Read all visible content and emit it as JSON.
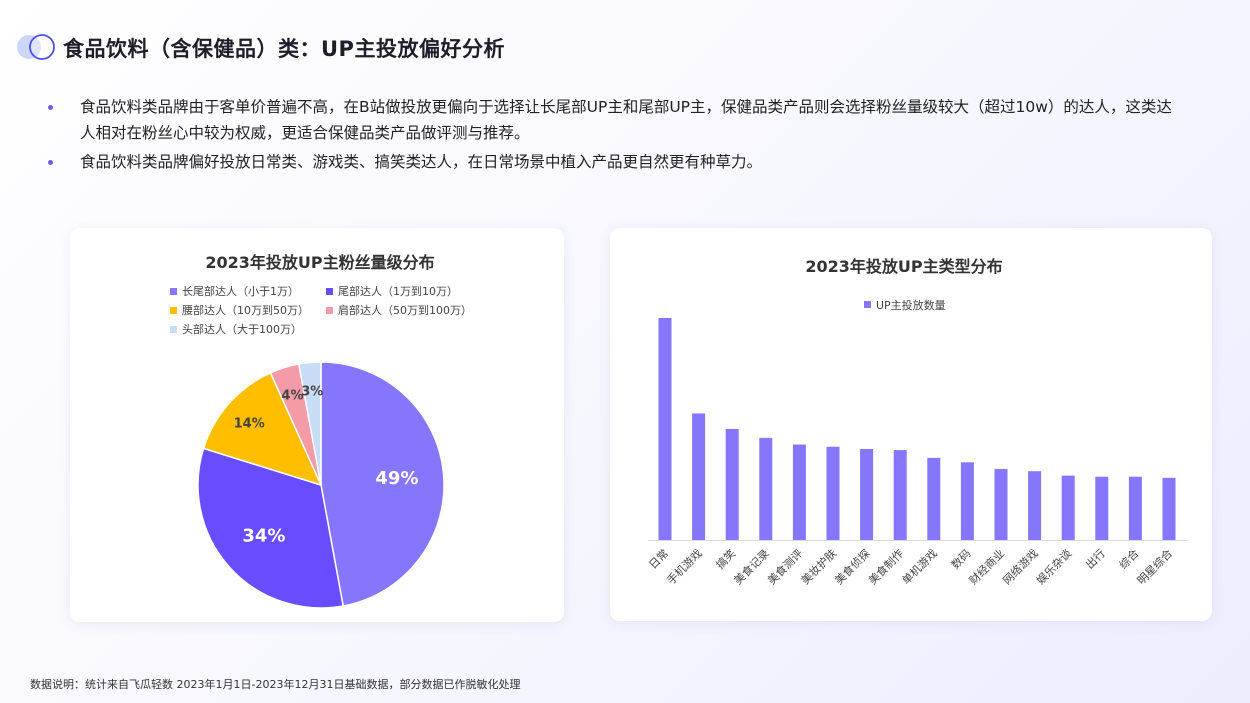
{
  "header": {
    "title": "食品饮料（含保健品）类：UP主投放偏好分析",
    "logo_icon": "double-circle-icon"
  },
  "bullets": [
    "食品饮料类品牌由于客单价普遍不高，在B站做投放更偏向于选择让长尾部UP主和尾部UP主，保健品类产品则会选择粉丝量级较大（超过10w）的达人，这类达人相对在粉丝心中较为权威，更适合保健品类产品做评测与推荐。",
    "食品饮料类品牌偏好投放日常类、游戏类、搞笑类达人，在日常场景中植入产品更自然更有种草力。"
  ],
  "footnote": "数据说明：统计来自飞瓜轻数 2023年1月1日-2023年12月31日基础数据，部分数据已作脱敏化处理",
  "chart_data": [
    {
      "type": "pie",
      "title": "2023年投放UP主粉丝量级分布",
      "legend_position": "top",
      "slices": [
        {
          "name": "长尾部达人（小于1万）",
          "value": 49,
          "label": "49%",
          "color": "#8676fb"
        },
        {
          "name": "尾部达人（1万到10万）",
          "value": 34,
          "label": "34%",
          "color": "#6a4cff"
        },
        {
          "name": "腰部达人（10万到50万）",
          "value": 14,
          "label": "14%",
          "color": "#ffbf00"
        },
        {
          "name": "肩部达人（50万到100万）",
          "value": 4,
          "label": "4%",
          "color": "#f59ba8"
        },
        {
          "name": "头部达人（大于100万）",
          "value": 3,
          "label": "3%",
          "color": "#c7dcf5"
        }
      ]
    },
    {
      "type": "bar",
      "title": "2023年投放UP主类型分布",
      "legend_position": "top",
      "grid": false,
      "series": [
        {
          "name": "UP主投放数量",
          "color": "#8676fb",
          "values": [
            100,
            57,
            50,
            46,
            43,
            42,
            41,
            40.5,
            37,
            35,
            32,
            31,
            29,
            28.5,
            28.5,
            28
          ]
        }
      ],
      "categories": [
        "日常",
        "手机游戏",
        "搞笑",
        "美食记录",
        "美食测评",
        "美妆护肤",
        "美食侦探",
        "美食制作",
        "单机游戏",
        "数码",
        "财经商业",
        "网络游戏",
        "娱乐杂谈",
        "出行",
        "综合",
        "明星综合"
      ],
      "ylim": [
        0,
        100
      ]
    }
  ]
}
